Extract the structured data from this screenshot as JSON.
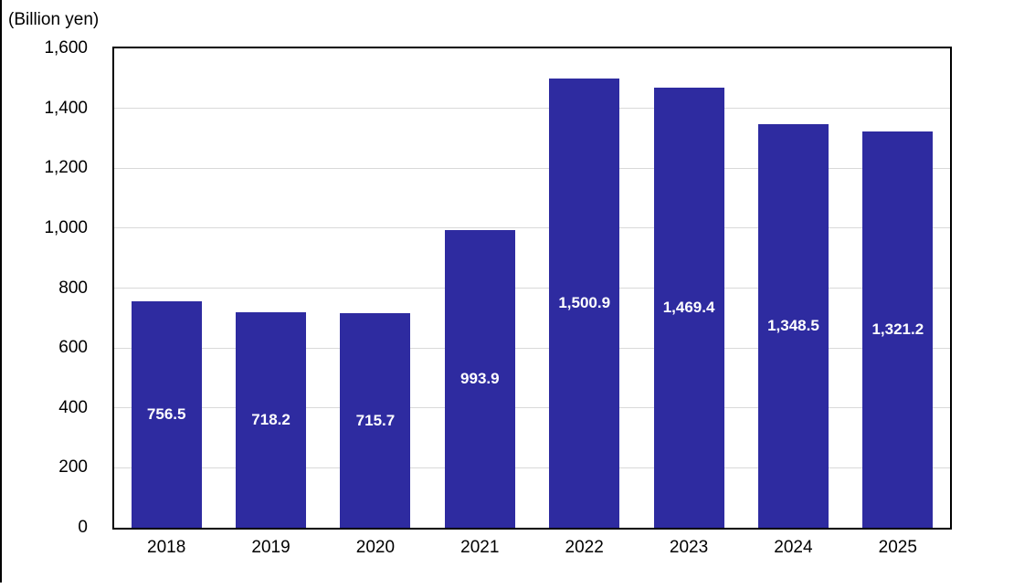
{
  "figure": {
    "unit_label": "(Billion yen)"
  },
  "colors": {
    "bar_fill": "#2E2BA0",
    "gridline": "#D9D9D9",
    "axis_border": "#000000",
    "value_label_text": "#FFFFFF",
    "tick_text": "#000000",
    "background": "#FFFFFF"
  },
  "chart_data": {
    "type": "bar",
    "title": "",
    "unit_label": "(Billion yen)",
    "xlabel": "",
    "ylabel": "(Billion yen)",
    "categories": [
      "2018",
      "2019",
      "2020",
      "2021",
      "2022",
      "2023",
      "2024",
      "2025"
    ],
    "values": [
      756.5,
      718.2,
      715.7,
      993.9,
      1500.9,
      1469.4,
      1348.5,
      1321.2
    ],
    "value_labels": [
      "756.5",
      "718.2",
      "715.7",
      "993.9",
      "1,500.9",
      "1,469.4",
      "1,348.5",
      "1,321.2"
    ],
    "ylim": [
      0,
      1600
    ],
    "ytick_interval": 200,
    "ytick_values": [
      0,
      200,
      400,
      600,
      800,
      1000,
      1200,
      1400,
      1600
    ],
    "ytick_labels": [
      "0",
      "200",
      "400",
      "600",
      "800",
      "1,000",
      "1,200",
      "1,400",
      "1,600"
    ],
    "grid": "horizontal",
    "legend": "none",
    "value_label_position": "inside-center"
  }
}
